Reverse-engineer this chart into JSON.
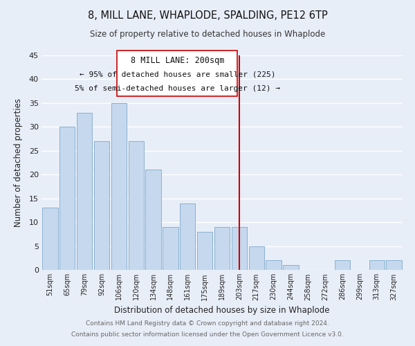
{
  "title": "8, MILL LANE, WHAPLODE, SPALDING, PE12 6TP",
  "subtitle": "Size of property relative to detached houses in Whaplode",
  "xlabel": "Distribution of detached houses by size in Whaplode",
  "ylabel": "Number of detached properties",
  "footer_line1": "Contains HM Land Registry data © Crown copyright and database right 2024.",
  "footer_line2": "Contains public sector information licensed under the Open Government Licence v3.0.",
  "bar_color": "#c5d8ee",
  "bar_edge_color": "#8ab0d0",
  "background_color": "#e8eef8",
  "grid_color": "#ffffff",
  "annotation_box_color": "#ffffff",
  "annotation_box_edge": "#cc0000",
  "redline_color": "#cc0000",
  "categories": [
    "51sqm",
    "65sqm",
    "79sqm",
    "92sqm",
    "106sqm",
    "120sqm",
    "134sqm",
    "148sqm",
    "161sqm",
    "175sqm",
    "189sqm",
    "203sqm",
    "217sqm",
    "230sqm",
    "244sqm",
    "258sqm",
    "272sqm",
    "286sqm",
    "299sqm",
    "313sqm",
    "327sqm"
  ],
  "values": [
    13,
    30,
    33,
    27,
    35,
    27,
    21,
    9,
    14,
    8,
    9,
    9,
    5,
    2,
    1,
    0,
    0,
    2,
    0,
    2,
    2
  ],
  "redline_index": 11,
  "ylim": [
    0,
    45
  ],
  "yticks": [
    0,
    5,
    10,
    15,
    20,
    25,
    30,
    35,
    40,
    45
  ],
  "annotation_title": "8 MILL LANE: 200sqm",
  "annotation_line1": "← 95% of detached houses are smaller (225)",
  "annotation_line2": "5% of semi-detached houses are larger (12) →"
}
